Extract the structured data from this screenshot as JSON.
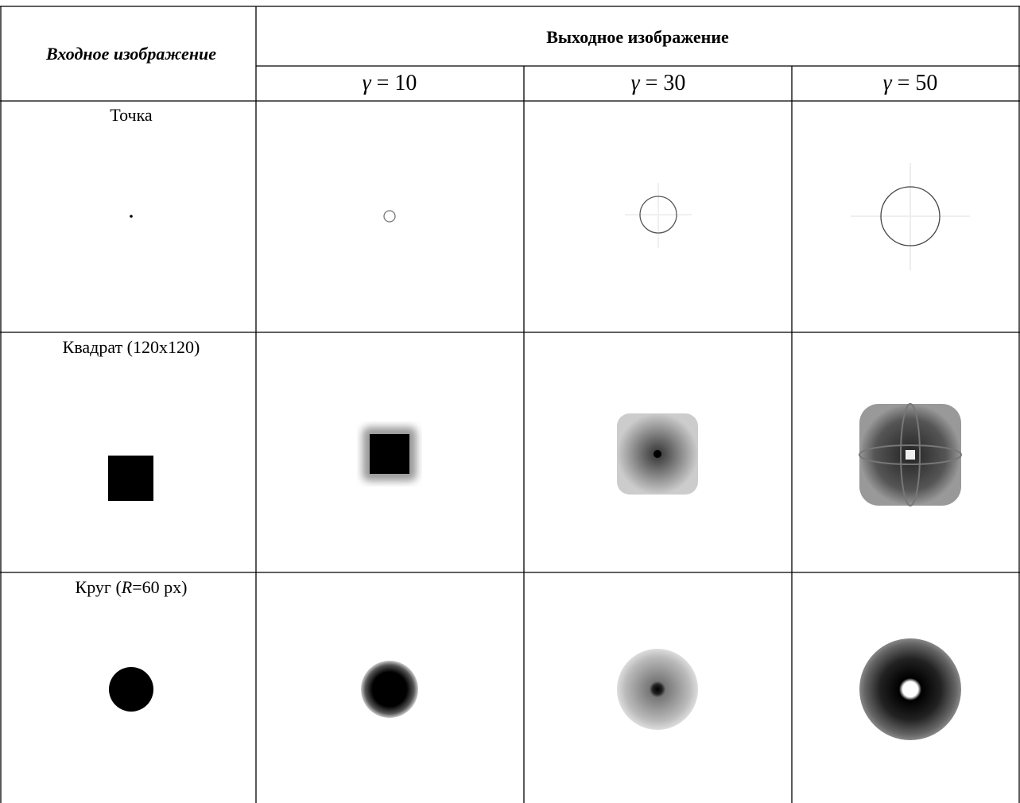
{
  "table": {
    "header": {
      "input_title": "Входное изображение",
      "output_title": "Выходное изображение",
      "gamma_columns": [
        {
          "symbol": "γ",
          "rest": " = 10"
        },
        {
          "symbol": "γ",
          "rest": " = 30"
        },
        {
          "symbol": "γ",
          "rest": " = 50"
        }
      ]
    },
    "rows": [
      {
        "label": [
          "Точка"
        ]
      },
      {
        "label": [
          "Квадрат (120x120)"
        ]
      },
      {
        "label": [
          "Круг (",
          "R",
          "=60 px)"
        ]
      }
    ]
  }
}
